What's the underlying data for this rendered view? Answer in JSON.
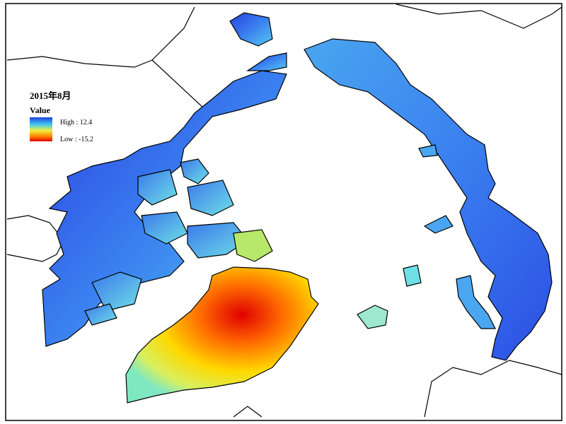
{
  "map": {
    "title": "2015年8月",
    "legend": {
      "title": "Value",
      "high": "High : 12.4",
      "low": "Low : -15.2"
    }
  }
}
